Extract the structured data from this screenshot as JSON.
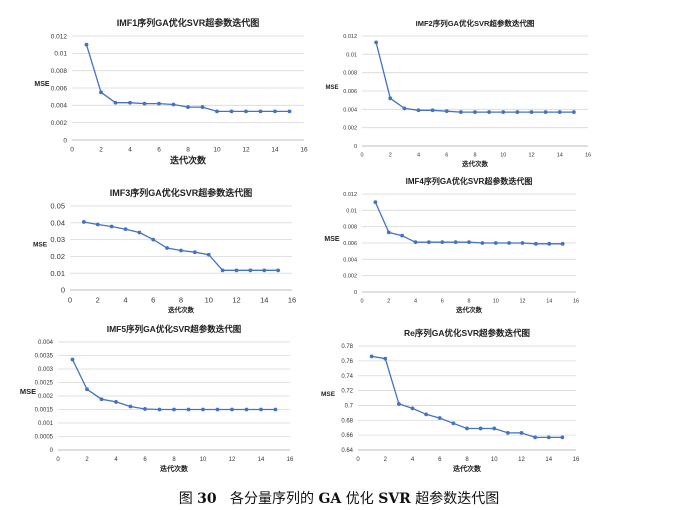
{
  "caption": {
    "label": "图",
    "number": "30",
    "text_1": "各分量序列的",
    "bold_1": "GA",
    "text_2": "优化",
    "bold_2": "SVR",
    "text_3": "超参数迭代图"
  },
  "colors": {
    "series": "#4472C4",
    "grid": "#D9D9D9",
    "axis": "#BFBFBF",
    "text": "#333333"
  },
  "chart_data": [
    {
      "type": "line",
      "title": "IMF1序列GA优化SVR超参数迭代图",
      "xlabel": "迭代次数",
      "ylabel": "MSE",
      "xlim": [
        0,
        16
      ],
      "ylim": [
        0,
        0.012
      ],
      "xticks": [
        "0",
        "2",
        "4",
        "6",
        "8",
        "10",
        "12",
        "14",
        "16"
      ],
      "yticks": [
        "0",
        "0.002",
        "0.004",
        "0.006",
        "0.008",
        "0.01",
        "0.012"
      ],
      "grid": true,
      "legend": "none",
      "x": [
        1,
        2,
        3,
        4,
        5,
        6,
        7,
        8,
        9,
        10,
        11,
        12,
        13,
        14,
        15
      ],
      "y": [
        0.011,
        0.0055,
        0.0043,
        0.0043,
        0.0042,
        0.0042,
        0.0041,
        0.0038,
        0.0038,
        0.0033,
        0.0033,
        0.0033,
        0.0033,
        0.0033,
        0.0033
      ]
    },
    {
      "type": "line",
      "title": "IMF2序列GA优化SVR超参数迭代图",
      "xlabel": "迭代次数",
      "ylabel": "MSE",
      "xlim": [
        0,
        16
      ],
      "ylim": [
        0,
        0.012
      ],
      "xticks": [
        "0",
        "2",
        "4",
        "6",
        "8",
        "10",
        "12",
        "14",
        "16"
      ],
      "yticks": [
        "0",
        "0.002",
        "0.004",
        "0.006",
        "0.008",
        "0.01",
        "0.012"
      ],
      "grid": true,
      "legend": "none",
      "x": [
        1,
        2,
        3,
        4,
        5,
        6,
        7,
        8,
        9,
        10,
        11,
        12,
        13,
        14,
        15
      ],
      "y": [
        0.0113,
        0.0052,
        0.0041,
        0.0039,
        0.0039,
        0.0038,
        0.0037,
        0.0037,
        0.0037,
        0.0037,
        0.0037,
        0.0037,
        0.0037,
        0.0037,
        0.0037
      ]
    },
    {
      "type": "line",
      "title": "IMF3序列GA优化SVR超参数迭代图",
      "xlabel": "迭代次数",
      "ylabel": "MSE",
      "xlim": [
        0,
        16
      ],
      "ylim": [
        0,
        0.05
      ],
      "xticks": [
        "0",
        "2",
        "4",
        "6",
        "8",
        "10",
        "12",
        "14",
        "16"
      ],
      "yticks": [
        "0",
        "0.01",
        "0.02",
        "0.03",
        "0.04",
        "0.05"
      ],
      "grid": true,
      "legend": "none",
      "x": [
        1,
        2,
        3,
        4,
        5,
        6,
        7,
        8,
        9,
        10,
        11,
        12,
        13,
        14,
        15
      ],
      "y": [
        0.0405,
        0.039,
        0.0378,
        0.0362,
        0.0342,
        0.03,
        0.025,
        0.0235,
        0.0225,
        0.021,
        0.0117,
        0.0117,
        0.0117,
        0.0117,
        0.0117
      ]
    },
    {
      "type": "line",
      "title": "IMF4序列GA优化SVR超参数迭代图",
      "xlabel": "迭代次数",
      "ylabel": "MSE",
      "xlim": [
        0,
        16
      ],
      "ylim": [
        0,
        0.012
      ],
      "xticks": [
        "0",
        "2",
        "4",
        "6",
        "8",
        "10",
        "12",
        "14",
        "16"
      ],
      "yticks": [
        "0",
        "0.002",
        "0.004",
        "0.006",
        "0.008",
        "0.01",
        "0.012"
      ],
      "grid": true,
      "legend": "none",
      "x": [
        1,
        2,
        3,
        4,
        5,
        6,
        7,
        8,
        9,
        10,
        11,
        12,
        13,
        14,
        15
      ],
      "y": [
        0.011,
        0.0073,
        0.0069,
        0.0061,
        0.0061,
        0.0061,
        0.0061,
        0.0061,
        0.006,
        0.006,
        0.006,
        0.006,
        0.0059,
        0.0059,
        0.0059
      ]
    },
    {
      "type": "line",
      "title": "IMF5序列GA优化SVR超参数迭代图",
      "xlabel": "迭代次数",
      "ylabel": "MSE",
      "xlim": [
        0,
        16
      ],
      "ylim": [
        0,
        0.004
      ],
      "xticks": [
        "0",
        "2",
        "4",
        "6",
        "8",
        "10",
        "12",
        "14",
        "16"
      ],
      "yticks": [
        "0",
        "0.0005",
        "0.001",
        "0.0015",
        "0.002",
        "0.0025",
        "0.003",
        "0.0035",
        "0.004"
      ],
      "grid": true,
      "legend": "none",
      "x": [
        1,
        2,
        3,
        4,
        5,
        6,
        7,
        8,
        9,
        10,
        11,
        12,
        13,
        14,
        15
      ],
      "y": [
        0.00335,
        0.00225,
        0.00188,
        0.00178,
        0.00161,
        0.00152,
        0.0015,
        0.0015,
        0.0015,
        0.0015,
        0.0015,
        0.0015,
        0.0015,
        0.0015,
        0.0015
      ]
    },
    {
      "type": "line",
      "title": "Re序列GA优化SVR超参数迭代图",
      "xlabel": "迭代次数",
      "ylabel": "MSE",
      "xlim": [
        0,
        16
      ],
      "ylim": [
        0.64,
        0.78
      ],
      "xticks": [
        "0",
        "2",
        "4",
        "6",
        "8",
        "10",
        "12",
        "14",
        "16"
      ],
      "yticks": [
        "0.64",
        "0.66",
        "0.68",
        "0.7",
        "0.72",
        "0.74",
        "0.76",
        "0.78"
      ],
      "grid": true,
      "legend": "none",
      "x": [
        1,
        2,
        3,
        4,
        5,
        6,
        7,
        8,
        9,
        10,
        11,
        12,
        13,
        14,
        15
      ],
      "y": [
        0.766,
        0.763,
        0.702,
        0.696,
        0.688,
        0.683,
        0.676,
        0.669,
        0.669,
        0.669,
        0.663,
        0.663,
        0.657,
        0.657,
        0.657
      ]
    }
  ]
}
